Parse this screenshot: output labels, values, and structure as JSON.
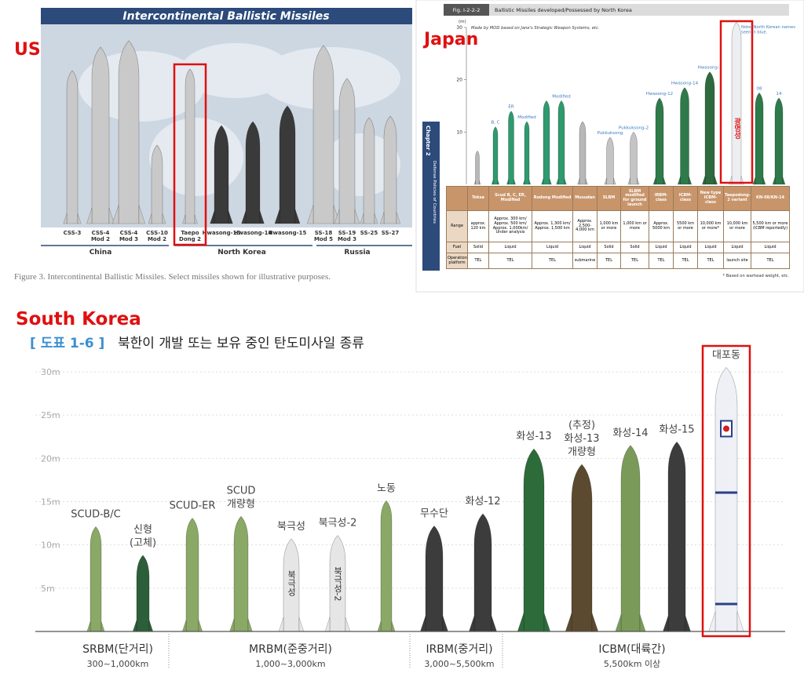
{
  "us": {
    "label": "US",
    "title": "Intercontinental Ballistic Missiles",
    "missiles": [
      [
        "CSS-3"
      ],
      [
        "CSS-4",
        "Mod 2"
      ],
      [
        "CSS-4",
        "Mod 3"
      ],
      [
        "CSS-10",
        "Mod 2"
      ],
      [
        "Taepo",
        "Dong 2"
      ],
      [
        "Hwasong-13"
      ],
      [
        "Hwasong-14"
      ],
      [
        "Hwasong-15"
      ],
      [
        "SS-18",
        "Mod 5"
      ],
      [
        "SS-19",
        "Mod 3"
      ],
      [
        "SS-25"
      ],
      [
        "SS-27"
      ]
    ],
    "groups": [
      "China",
      "North Korea",
      "Russia"
    ],
    "caption": "Figure 3. Intercontinental Ballistic Missiles. Select missiles shown for illustrative purposes."
  },
  "japan": {
    "label": "Japan",
    "figure": "Fig. I-2-2-2",
    "title": "Ballistic Missiles developed/Possessed by North Korea",
    "unit": "(m)",
    "ylim": [
      0,
      30
    ],
    "yticks": [
      30,
      20,
      10
    ],
    "source_note": "Made by MOD based on Jane's Strategic Weapon Systems, etc.",
    "color_note": [
      "Note: North Korean names",
      "seen in blue."
    ],
    "chapter": "Chapter 2",
    "chapter_subtitle": "Defense Policies of Countries",
    "rockets": [
      {
        "height": 6.4,
        "color": "#b8b8b8"
      },
      {
        "label": "B, C",
        "height": 11,
        "color": "#2e9a6e"
      },
      {
        "label": "ER",
        "height": 14,
        "color": "#2e9a6e"
      },
      {
        "label": "Modified",
        "height": 12,
        "color": "#2e9a6e"
      },
      {
        "height": 16,
        "color": "#2e9a6e"
      },
      {
        "label": "Modified",
        "height": 16,
        "color": "#2e9a6e"
      },
      {
        "height": 12,
        "color": "#b8b8b8"
      },
      {
        "label": "Pukkuksong",
        "height": 9,
        "color": "#c4c4c4"
      },
      {
        "label": "Pukkuksong-2",
        "height": 10,
        "color": "#c4c4c4"
      },
      {
        "label": "Hwasong-12",
        "height": 16.5,
        "color": "#2e7a4a"
      },
      {
        "label": "Hwasong-14",
        "height": 18.5,
        "color": "#2e7a4a"
      },
      {
        "label": "Hwasong-1",
        "height": 21.5,
        "color": "#2e6a3e"
      },
      {
        "height": 31,
        "color": "#eceef2"
      },
      {
        "label": "08",
        "height": 17.5,
        "color": "#2e7a4a"
      },
      {
        "label": "14",
        "height": 16.5,
        "color": "#2e7a4a"
      }
    ],
    "taepodong_text": "광명성",
    "table": {
      "columns": [
        "Toksa",
        "Scud B, C, ER, Modified",
        "Rodong Modified",
        "Musudan",
        "SLBM",
        "SLBM modified for ground launch",
        "IRBM-class",
        "ICBM-class",
        "New type ICBM-class",
        "Taepodong-2 variant",
        "KN-08/KN-14"
      ],
      "rows": [
        {
          "header": "Range",
          "cells": [
            "approx. 120 km",
            "Approx. 300 km/ Approx. 500 km/ Approx. 1,000km/ Under analysis",
            "Approx. 1,300 km/ Approx. 1,500 km",
            "Approx. 2,500-4,000 km",
            "1,000 km or more",
            "1,000 km or more",
            "Approx. 5000 km",
            "5500 km or more",
            "10,000 km or more*",
            "10,000 km or more",
            "5,500 km or more (ICBM reportedly)"
          ]
        },
        {
          "header": "Fuel",
          "cells": [
            "Solid",
            "Liquid",
            "Liquid",
            "Liquid",
            "Solid",
            "Solid",
            "Liquid",
            "Liquid",
            "Liquid",
            "Liquid",
            "Liquid"
          ]
        },
        {
          "header": "Operation platform",
          "cells": [
            "TEL",
            "TEL",
            "TEL",
            "submarine",
            "TEL",
            "TEL",
            "TEL",
            "TEL",
            "TEL",
            "launch site",
            "TEL"
          ]
        }
      ]
    },
    "footnote": "* Based on warhead weight, etc."
  },
  "south_korea": {
    "label": "South Korea",
    "title_tag": "[ 도표 1-6 ]",
    "title": "북한이 개발 또는 보유 중인 탄도미사일 종류",
    "ylim": [
      0,
      30
    ],
    "yticks": [
      {
        "value": 30,
        "label": "30m"
      },
      {
        "value": 25,
        "label": "25m"
      },
      {
        "value": 20,
        "label": "20m"
      },
      {
        "value": 15,
        "label": "15m"
      },
      {
        "value": 10,
        "label": "10m"
      },
      {
        "value": 5,
        "label": "5m"
      }
    ],
    "rockets": [
      {
        "label": [
          "SCUD-B/C"
        ],
        "height": 12.1,
        "color": "#8aa866"
      },
      {
        "label": [
          "신형",
          "(고체)"
        ],
        "height": 8.8,
        "color": "#2d5e3a"
      },
      {
        "label": [
          "SCUD-ER"
        ],
        "height": 13.1,
        "color": "#8aa866"
      },
      {
        "label": [
          "SCUD",
          "개량형"
        ],
        "height": 13.3,
        "color": "#8aa866"
      },
      {
        "label": [
          "북극성"
        ],
        "height": 10.7,
        "color": "#e6e6e6",
        "body_text": "북극성"
      },
      {
        "label": [
          "북극성-2"
        ],
        "height": 11.1,
        "color": "#e6e6e6",
        "body_text": "북극성-2"
      },
      {
        "label": [
          "노동"
        ],
        "height": 15.1,
        "color": "#8aa866"
      },
      {
        "label": [
          "무수단"
        ],
        "height": 12.2,
        "color": "#3c3c3c"
      },
      {
        "label": [
          "화성-12"
        ],
        "height": 13.6,
        "color": "#3c3c3c"
      },
      {
        "label": [
          "화성-13"
        ],
        "height": 21.1,
        "color": "#2d6b3a"
      },
      {
        "label": [
          "(추정)",
          "화성-13",
          "개량형"
        ],
        "height": 19.3,
        "color": "#5b4a30"
      },
      {
        "label": [
          "화성-14"
        ],
        "height": 21.5,
        "color": "#7a9a5a"
      },
      {
        "label": [
          "화성-15"
        ],
        "height": 21.9,
        "color": "#3c3c3c"
      },
      {
        "label": [
          "대포동"
        ],
        "height": 30.5,
        "color": "#eef0f5"
      }
    ],
    "groups": [
      {
        "name": "SRBM(단거리)",
        "range": "300~1,000km"
      },
      {
        "name": "MRBM(준중거리)",
        "range": "1,000~3,000km"
      },
      {
        "name": "IRBM(중거리)",
        "range": "3,000~5,500km"
      },
      {
        "name": "ICBM(대륙간)",
        "range": "5,500km 이상"
      }
    ]
  }
}
